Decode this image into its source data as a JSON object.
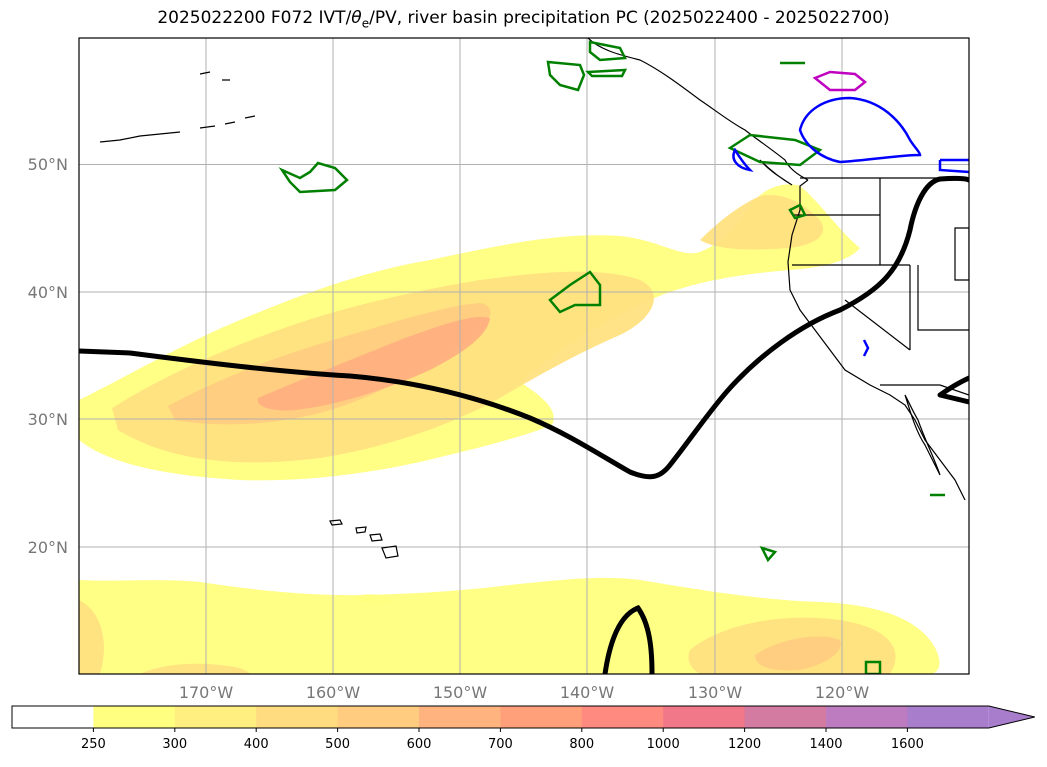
{
  "title": {
    "prefix": "2025022200 F072 IVT/",
    "theta": "θ",
    "theta_sub": "e",
    "suffix": "/PV, river basin precipitation PC (2025022400 - 2025022700)"
  },
  "map": {
    "extent": {
      "lon_min": -180,
      "lon_max": -110,
      "lat_min": 10,
      "lat_max": 60
    },
    "gridlines": true,
    "lat_ticks": [
      {
        "value": 20,
        "label": "20°N"
      },
      {
        "value": 30,
        "label": "30°N"
      },
      {
        "value": 40,
        "label": "40°N"
      },
      {
        "value": 50,
        "label": "50°N"
      }
    ],
    "lon_ticks": [
      {
        "value": -170,
        "label": "170°W"
      },
      {
        "value": -160,
        "label": "160°W"
      },
      {
        "value": -150,
        "label": "150°W"
      },
      {
        "value": -140,
        "label": "140°W"
      },
      {
        "value": -130,
        "label": "130°W"
      },
      {
        "value": -120,
        "label": "120°W"
      }
    ]
  },
  "colorbar": {
    "levels": [
      "250",
      "300",
      "400",
      "500",
      "600",
      "700",
      "800",
      "1000",
      "1200",
      "1400",
      "1600"
    ],
    "colors": [
      "#ffff80",
      "#ffee80",
      "#ffdc80",
      "#ffcc80",
      "#ffb47f",
      "#ffa07a",
      "#ff8a80",
      "#f07888",
      "#d37ba0",
      "#bc7cbf",
      "#a87dcc"
    ],
    "under_color": "#ffffff",
    "extend": "max"
  },
  "colors": {
    "ivt_fill_1": "#ffff80",
    "ivt_fill_2": "#ffe27f",
    "ivt_fill_3": "#ffcc80",
    "ivt_fill_4": "#ffb07f",
    "pv_line": "#000000",
    "precip_green": "#008000",
    "precip_blue": "#0000ff",
    "precip_magenta": "#c000c0",
    "coastline": "#000000",
    "grid": "#b0b0b0"
  }
}
